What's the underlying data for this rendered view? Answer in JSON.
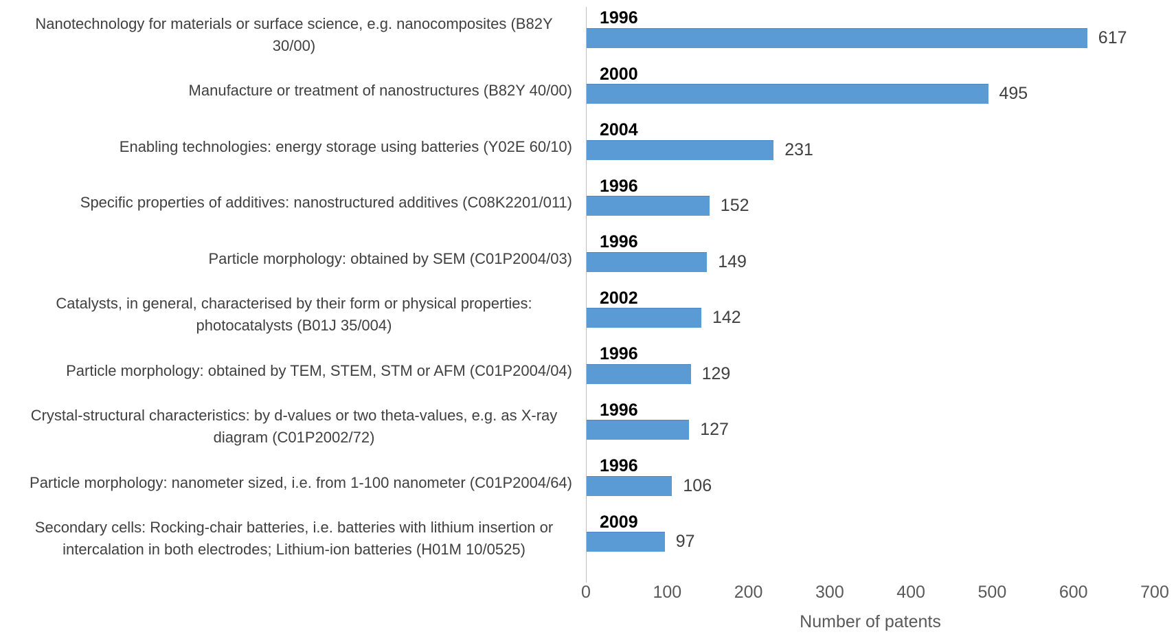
{
  "chart_data": {
    "type": "bar",
    "orientation": "horizontal",
    "title": "",
    "xlabel": "Number of patents",
    "ylabel": "",
    "xlim": [
      0,
      700
    ],
    "x_ticks": [
      0,
      100,
      200,
      300,
      400,
      500,
      600,
      700
    ],
    "grid": false,
    "legend": false,
    "bar_color": "#5B9BD5",
    "categories": [
      "Nanotechnology for materials or surface science, e.g. nanocomposites (B82Y 30/00)",
      "Manufacture or treatment of nanostructures (B82Y 40/00)",
      "Enabling technologies: energy storage using batteries (Y02E 60/10)",
      "Specific properties of additives: nanostructured additives (C08K2201/011)",
      "Particle morphology: obtained by SEM (C01P2004/03)",
      "Catalysts, in general, characterised by their form or physical properties: photocatalysts (B01J 35/004)",
      "Particle morphology: obtained by TEM, STEM, STM or AFM (C01P2004/04)",
      "Crystal-structural characteristics: by d-values or two theta-values, e.g. as X-ray diagram (C01P2002/72)",
      "Particle morphology: nanometer sized, i.e. from 1-100 nanometer (C01P2004/64)",
      "Secondary cells: Rocking-chair batteries, i.e. batteries with lithium insertion or intercalation in both electrodes; Lithium-ion batteries (H01M 10/0525)"
    ],
    "year_labels": [
      "1996",
      "2000",
      "2004",
      "1996",
      "1996",
      "2002",
      "1996",
      "1996",
      "1996",
      "2009"
    ],
    "values": [
      617,
      495,
      231,
      152,
      149,
      142,
      129,
      127,
      106,
      97
    ]
  },
  "colors": {
    "bar": "#5B9BD5",
    "year_label": "#000000",
    "value_label": "#404040",
    "category_label": "#404040",
    "tick_label": "#595959",
    "axis_line": "#BFBFBF"
  }
}
